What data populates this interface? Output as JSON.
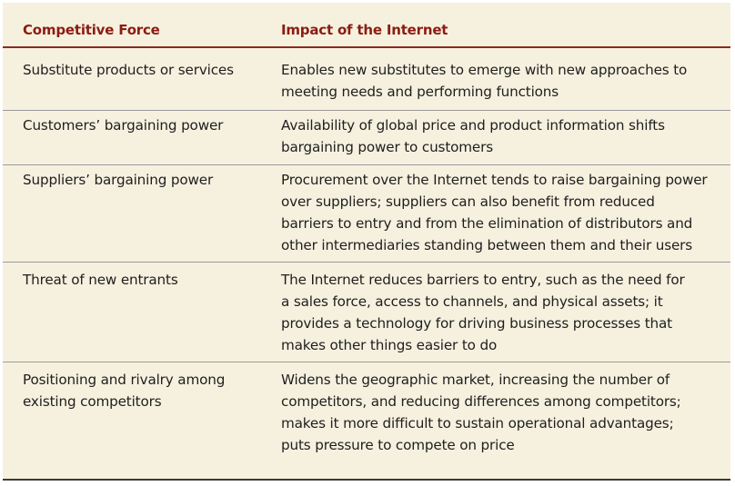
{
  "table": {
    "headers": {
      "force": "Competitive Force",
      "impact": "Impact of the Internet"
    },
    "rows": [
      {
        "force": [
          "Substitute products or services"
        ],
        "impact": [
          "Enables new substitutes to emerge with new approaches to",
          "meeting needs and performing functions"
        ]
      },
      {
        "force": [
          "Customers’ bargaining power"
        ],
        "impact": [
          "Availability of global price and product information shifts",
          "bargaining power to customers"
        ]
      },
      {
        "force": [
          "Suppliers’ bargaining power"
        ],
        "impact": [
          "Procurement over the Internet tends to raise bargaining power",
          "over suppliers; suppliers can also benefit from reduced",
          "barriers to entry and from the elimination of distributors and",
          "other intermediaries standing between them and their users"
        ]
      },
      {
        "force": [
          "Threat of new entrants"
        ],
        "impact": [
          "The Internet reduces barriers to entry, such as the need for",
          "a sales force, access to channels, and physical assets; it",
          "provides a technology for driving business processes that",
          "makes other things easier to do"
        ]
      },
      {
        "force": [
          "Positioning and rivalry among",
          "existing competitors"
        ],
        "impact": [
          "Widens the geographic market, increasing the number of",
          "competitors, and reducing differences among competitors;",
          "makes it more difficult to sustain operational advantages;",
          "puts pressure to compete on price"
        ]
      }
    ]
  }
}
